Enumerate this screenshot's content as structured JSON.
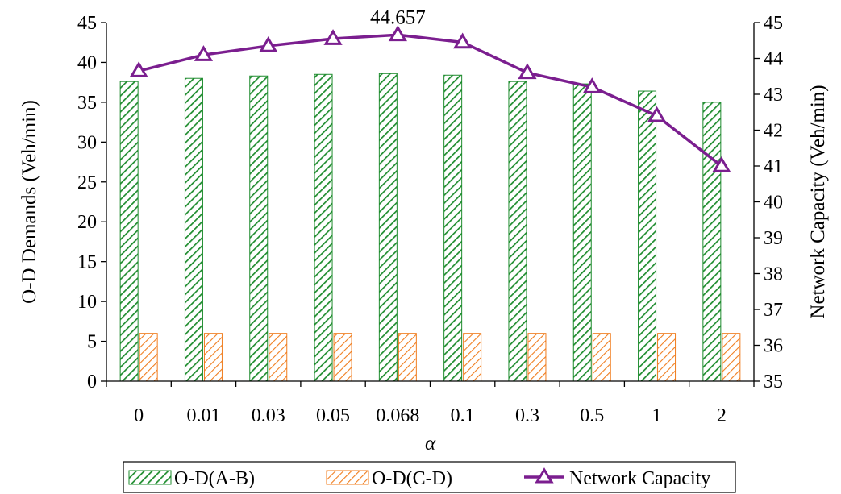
{
  "chart_data": {
    "type": "bar",
    "xlabel": "α",
    "ylabel": "O-D Demands (Veh/min)",
    "y2label": "Network Capacity (Veh/min)",
    "categories": [
      "0",
      "0.01",
      "0.03",
      "0.05",
      "0.068",
      "0.1",
      "0.3",
      "0.5",
      "1",
      "2"
    ],
    "ylim": [
      0,
      45
    ],
    "yticks": [
      0,
      5,
      10,
      15,
      20,
      25,
      30,
      35,
      40,
      45
    ],
    "y2lim": [
      35,
      45
    ],
    "y2ticks": [
      35,
      36,
      37,
      38,
      39,
      40,
      41,
      42,
      43,
      44,
      45
    ],
    "series": [
      {
        "name": "O-D(A-B)",
        "type": "bar",
        "axis": "left",
        "color": "#1e8c2e",
        "values": [
          37.6,
          38.0,
          38.3,
          38.5,
          38.6,
          38.4,
          37.6,
          37.3,
          36.4,
          35.0
        ]
      },
      {
        "name": "O-D(C-D)",
        "type": "bar",
        "axis": "left",
        "color": "#f07d1e",
        "values": [
          6,
          6,
          6,
          6,
          6,
          6,
          6,
          6,
          6,
          6
        ]
      },
      {
        "name": "Network Capacity",
        "type": "line",
        "axis": "right",
        "color": "#7b1e8f",
        "marker": "triangle",
        "values": [
          43.65,
          44.1,
          44.35,
          44.55,
          44.657,
          44.45,
          43.6,
          43.2,
          42.4,
          41.0
        ]
      }
    ],
    "annotations": [
      {
        "text": "44.657",
        "category": "0.068",
        "series": "Network Capacity"
      }
    ],
    "legend": {
      "position": "bottom"
    },
    "grid": false
  }
}
